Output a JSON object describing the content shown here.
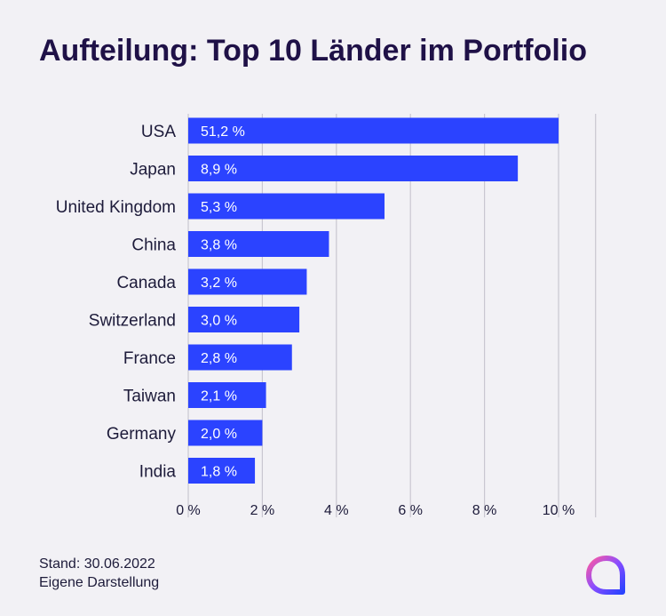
{
  "header": {
    "title": "Aufteilung: Top 10 Länder im Portfolio"
  },
  "chart_data": {
    "type": "bar",
    "orientation": "horizontal",
    "title": "Aufteilung: Top 10 Länder im Portfolio",
    "categories": [
      "USA",
      "Japan",
      "United Kingdom",
      "China",
      "Canada",
      "Switzerland",
      "France",
      "Taiwan",
      "Germany",
      "India"
    ],
    "values": [
      51.2,
      8.9,
      5.3,
      3.8,
      3.2,
      3.0,
      2.8,
      2.1,
      2.0,
      1.8
    ],
    "value_labels": [
      "51,2 %",
      "8,9 %",
      "5,3 %",
      "3,8 %",
      "3,2 %",
      "3,0 %",
      "2,8 %",
      "2,1 %",
      "2,0 %",
      "1,8 %"
    ],
    "xlim": [
      0,
      10
    ],
    "axis_break_note": "USA bar truncated at axis maximum",
    "xticks": [
      0,
      2,
      4,
      6,
      8,
      10
    ],
    "xtick_labels": [
      "0 %",
      "2 %",
      "4 %",
      "6 %",
      "8 %",
      "10 %"
    ],
    "grid": true,
    "bar_color": "#2b43ff",
    "grid_color": "#c9c7d0"
  },
  "footer": {
    "line1": "Stand: 30.06.2022",
    "line2": "Eigene Darstellung"
  },
  "logo": {
    "icon": "brand-logo-icon"
  }
}
